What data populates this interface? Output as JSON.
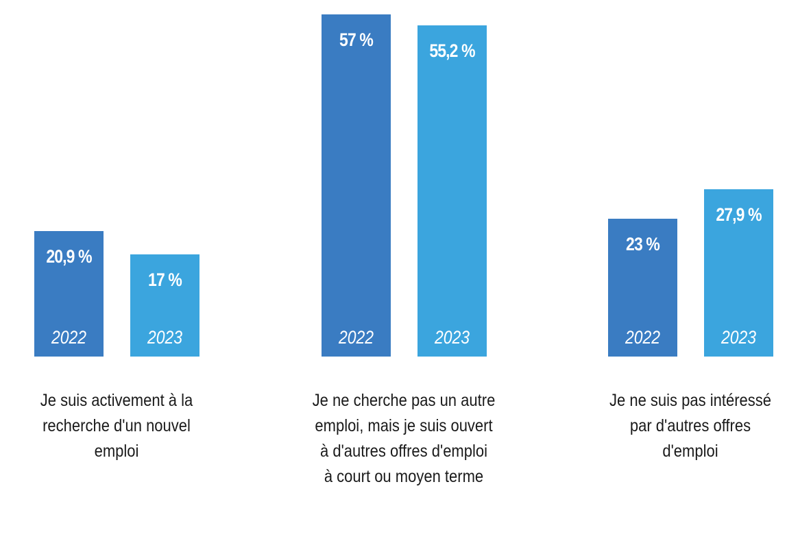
{
  "chart_data": {
    "type": "bar",
    "title": "",
    "xlabel": "",
    "ylabel": "",
    "ylim": [
      0,
      57
    ],
    "categories": [
      "Je suis activement à la recherche d'un nouvel emploi",
      "Je ne cherche pas un autre emploi, mais je suis ouvert à d'autres offres d'emploi à court ou moyen terme",
      "Je ne suis pas intéressé par d'autres offres d'emploi"
    ],
    "category_lines": [
      [
        "Je suis activement à la",
        "recherche d'un nouvel",
        "emploi"
      ],
      [
        "Je ne cherche pas un autre",
        "emploi, mais je suis ouvert",
        "à d'autres offres d'emploi",
        "à court ou moyen terme"
      ],
      [
        "Je ne suis pas intéressé",
        "par d'autres offres",
        "d'emploi"
      ]
    ],
    "series": [
      {
        "name": "2022",
        "color": "#3a7cc2",
        "values": [
          20.9,
          57,
          23
        ],
        "labels": [
          "20,9 %",
          "57 %",
          "23 %"
        ]
      },
      {
        "name": "2023",
        "color": "#3ba5de",
        "values": [
          17,
          55.2,
          27.9
        ],
        "labels": [
          "17 %",
          "55,2 %",
          "27,9 %"
        ]
      }
    ]
  }
}
